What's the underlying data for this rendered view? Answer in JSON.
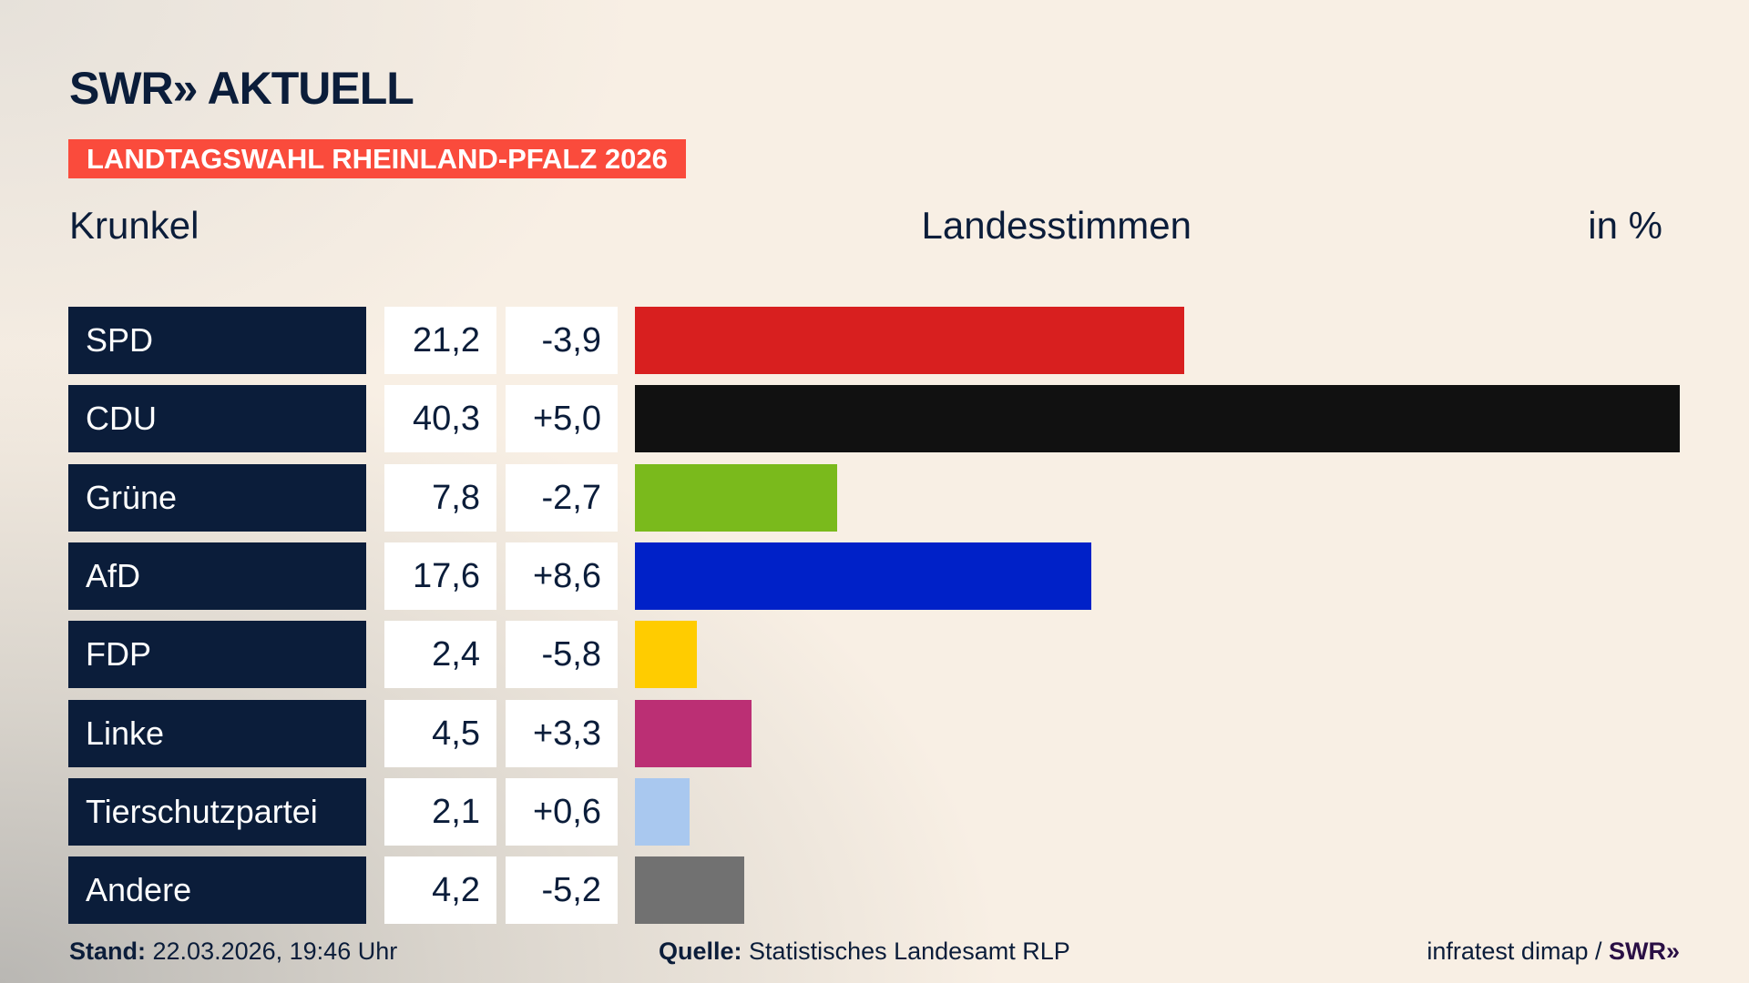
{
  "header": {
    "logo": "SWR»  AKTUELL",
    "banner": "LANDTAGSWAHL RHEINLAND-PFALZ 2026",
    "place": "Krunkel",
    "metric": "Landesstimmen",
    "unit": "in %"
  },
  "chart_data": {
    "type": "bar",
    "orientation": "horizontal",
    "title": "Landesstimmen",
    "unit": "in %",
    "categories": [
      "SPD",
      "CDU",
      "Grüne",
      "AfD",
      "FDP",
      "Linke",
      "Tierschutzpartei",
      "Andere"
    ],
    "values": [
      21.2,
      40.3,
      7.8,
      17.6,
      2.4,
      4.5,
      2.1,
      4.2
    ],
    "value_labels": [
      "21,2",
      "40,3",
      "7,8",
      "17,6",
      "2,4",
      "4,5",
      "2,1",
      "4,2"
    ],
    "diff_labels": [
      "-3,9",
      "+5,0",
      "-2,7",
      "+8,6",
      "-5,8",
      "+3,3",
      "+0,6",
      "-5,2"
    ],
    "diffs": [
      -3.9,
      5.0,
      -2.7,
      8.6,
      -5.8,
      3.3,
      0.6,
      -5.2
    ],
    "colors": [
      "#d81f1f",
      "#111111",
      "#7aba1c",
      "#0021c8",
      "#ffcc00",
      "#bb2f74",
      "#a9c8ef",
      "#717171"
    ]
  },
  "footer": {
    "stand_label": "Stand:",
    "stand": "22.03.2026, 19:46 Uhr",
    "quelle_label": "Quelle:",
    "quelle": "Statistisches Landesamt RLP",
    "credit": "infratest dimap / ",
    "credit_logo": "SWR»"
  }
}
